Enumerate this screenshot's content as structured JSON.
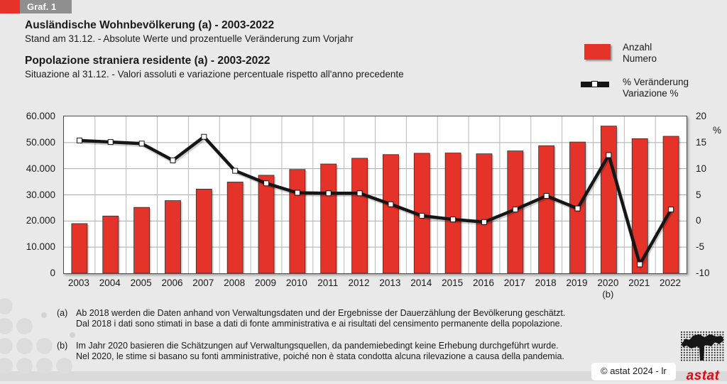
{
  "header": {
    "graf_label": "Graf. 1"
  },
  "titles": {
    "de_title": "Ausländische Wohnbevölkerung (a) - 2003-2022",
    "de_subtitle": "Stand am 31.12. - Absolute Werte und prozentuelle Veränderung zum Vorjahr",
    "it_title": "Popolazione straniera residente (a) - 2003-2022",
    "it_subtitle": "Situazione al 31.12. - Valori assoluti e variazione percentuale rispetto all'anno precedente"
  },
  "legend": {
    "bars": {
      "label_de": "Anzahl",
      "label_it": "Numero",
      "color": "#e6332a"
    },
    "line": {
      "label_de": "% Veränderung",
      "label_it": "Variazione %",
      "color": "#161616"
    }
  },
  "chart_data": {
    "type": "bar",
    "title": "Ausländische Wohnbevölkerung / Popolazione straniera residente (a) - 2003-2022",
    "categories": [
      "2003",
      "2004",
      "2005",
      "2006",
      "2007",
      "2008",
      "2009",
      "2010",
      "2011",
      "2012",
      "2013",
      "2014",
      "2015",
      "2016",
      "2017",
      "2018",
      "2019",
      "2020",
      "2021",
      "2022"
    ],
    "series": [
      {
        "name": "Anzahl / Numero",
        "type": "bar",
        "axis": "left",
        "color": "#e6332a",
        "values": [
          19000,
          21900,
          25200,
          27800,
          32200,
          34900,
          37500,
          39700,
          41800,
          44000,
          45400,
          45900,
          46000,
          45700,
          46800,
          48800,
          50200,
          56300,
          51500,
          52400
        ]
      },
      {
        "name": "% Veränderung / Variazione %",
        "type": "line",
        "axis": "right",
        "color": "#161616",
        "values": [
          15.4,
          15.1,
          14.8,
          11.6,
          16.1,
          9.6,
          7.2,
          5.4,
          5.3,
          5.3,
          3.2,
          1.0,
          0.3,
          -0.2,
          2.2,
          4.8,
          2.4,
          12.6,
          -8.3,
          2.2
        ]
      }
    ],
    "left_axis": {
      "min": 0,
      "max": 60000,
      "ticks": [
        "0",
        "10.000",
        "20.000",
        "30.000",
        "40.000",
        "50.000",
        "60.000"
      ]
    },
    "right_axis": {
      "min": -10,
      "max": 20,
      "ticks": [
        "-10",
        "-5",
        "0",
        "5",
        "10",
        "15",
        "20"
      ],
      "unit": "%"
    },
    "x_note": {
      "year": "2020",
      "label": "(b)"
    },
    "grid": true,
    "legend_position": "top-right"
  },
  "footnotes": [
    {
      "marker": "(a)",
      "de": "Ab 2018 werden die Daten anhand von Verwaltungsdaten und der Ergebnisse der Dauerzählung der Bevölkerung geschätzt.",
      "it": "Dal 2018 i dati sono stimati in base a dati di fonte amministrativa e ai risultati del censimento permanente della popolazione."
    },
    {
      "marker": "(b)",
      "de": "Im Jahr 2020 basieren die Schätzungen auf Verwaltungsquellen, da pandemiebedingt keine Erhebung durchgeführt wurde.",
      "it": "Nel 2020, le stime si basano su fonti amministrative, poiché non è stata condotta alcuna rilevazione a causa della pandemia."
    }
  ],
  "footer": {
    "copyright": "©  astat 2024 - lr",
    "logo_text": "astat"
  }
}
